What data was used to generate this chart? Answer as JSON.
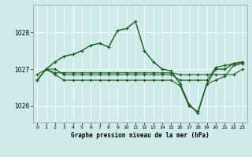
{
  "title": "Graphe pression niveau de la mer (hPa)",
  "bg_color": "#ceeaea",
  "line_color": "#1a5c1a",
  "marker": "+",
  "xlim": [
    -0.5,
    23.5
  ],
  "ylim": [
    1025.55,
    1028.75
  ],
  "yticks": [
    1026,
    1027,
    1028
  ],
  "xticks": [
    0,
    1,
    2,
    3,
    4,
    5,
    6,
    7,
    8,
    9,
    10,
    11,
    12,
    13,
    14,
    15,
    16,
    17,
    18,
    19,
    20,
    21,
    22,
    23
  ],
  "series": [
    [
      1026.85,
      1027.0,
      1026.9,
      1026.9,
      1026.9,
      1026.9,
      1026.9,
      1026.9,
      1026.9,
      1026.9,
      1026.9,
      1026.9,
      1026.9,
      1026.9,
      1026.9,
      1026.9,
      1026.85,
      1026.85,
      1026.85,
      1026.85,
      1026.85,
      1026.85,
      1026.85,
      1027.0
    ],
    [
      1026.7,
      1027.0,
      1027.0,
      1026.85,
      1026.85,
      1026.85,
      1026.85,
      1026.85,
      1026.85,
      1026.85,
      1026.85,
      1026.85,
      1026.85,
      1026.85,
      1026.85,
      1026.85,
      1026.7,
      1026.7,
      1026.7,
      1026.7,
      1027.05,
      1027.1,
      1027.15,
      1027.15
    ],
    [
      1026.7,
      1027.0,
      1026.85,
      1026.7,
      1026.7,
      1026.7,
      1026.7,
      1026.7,
      1026.7,
      1026.7,
      1026.7,
      1026.7,
      1026.7,
      1026.7,
      1026.7,
      1026.7,
      1026.55,
      1026.0,
      1025.85,
      1026.6,
      1026.7,
      1026.8,
      1027.1,
      1027.15
    ],
    [
      1026.7,
      1027.0,
      1027.2,
      1027.35,
      1027.4,
      1027.5,
      1027.65,
      1027.7,
      1027.6,
      1028.05,
      1028.1,
      1028.3,
      1027.5,
      1027.2,
      1027.0,
      1026.95,
      1026.6,
      1026.05,
      1025.8,
      1026.6,
      1027.0,
      1027.0,
      1027.15,
      1027.2
    ]
  ],
  "figsize": [
    3.2,
    2.0
  ],
  "dpi": 100
}
